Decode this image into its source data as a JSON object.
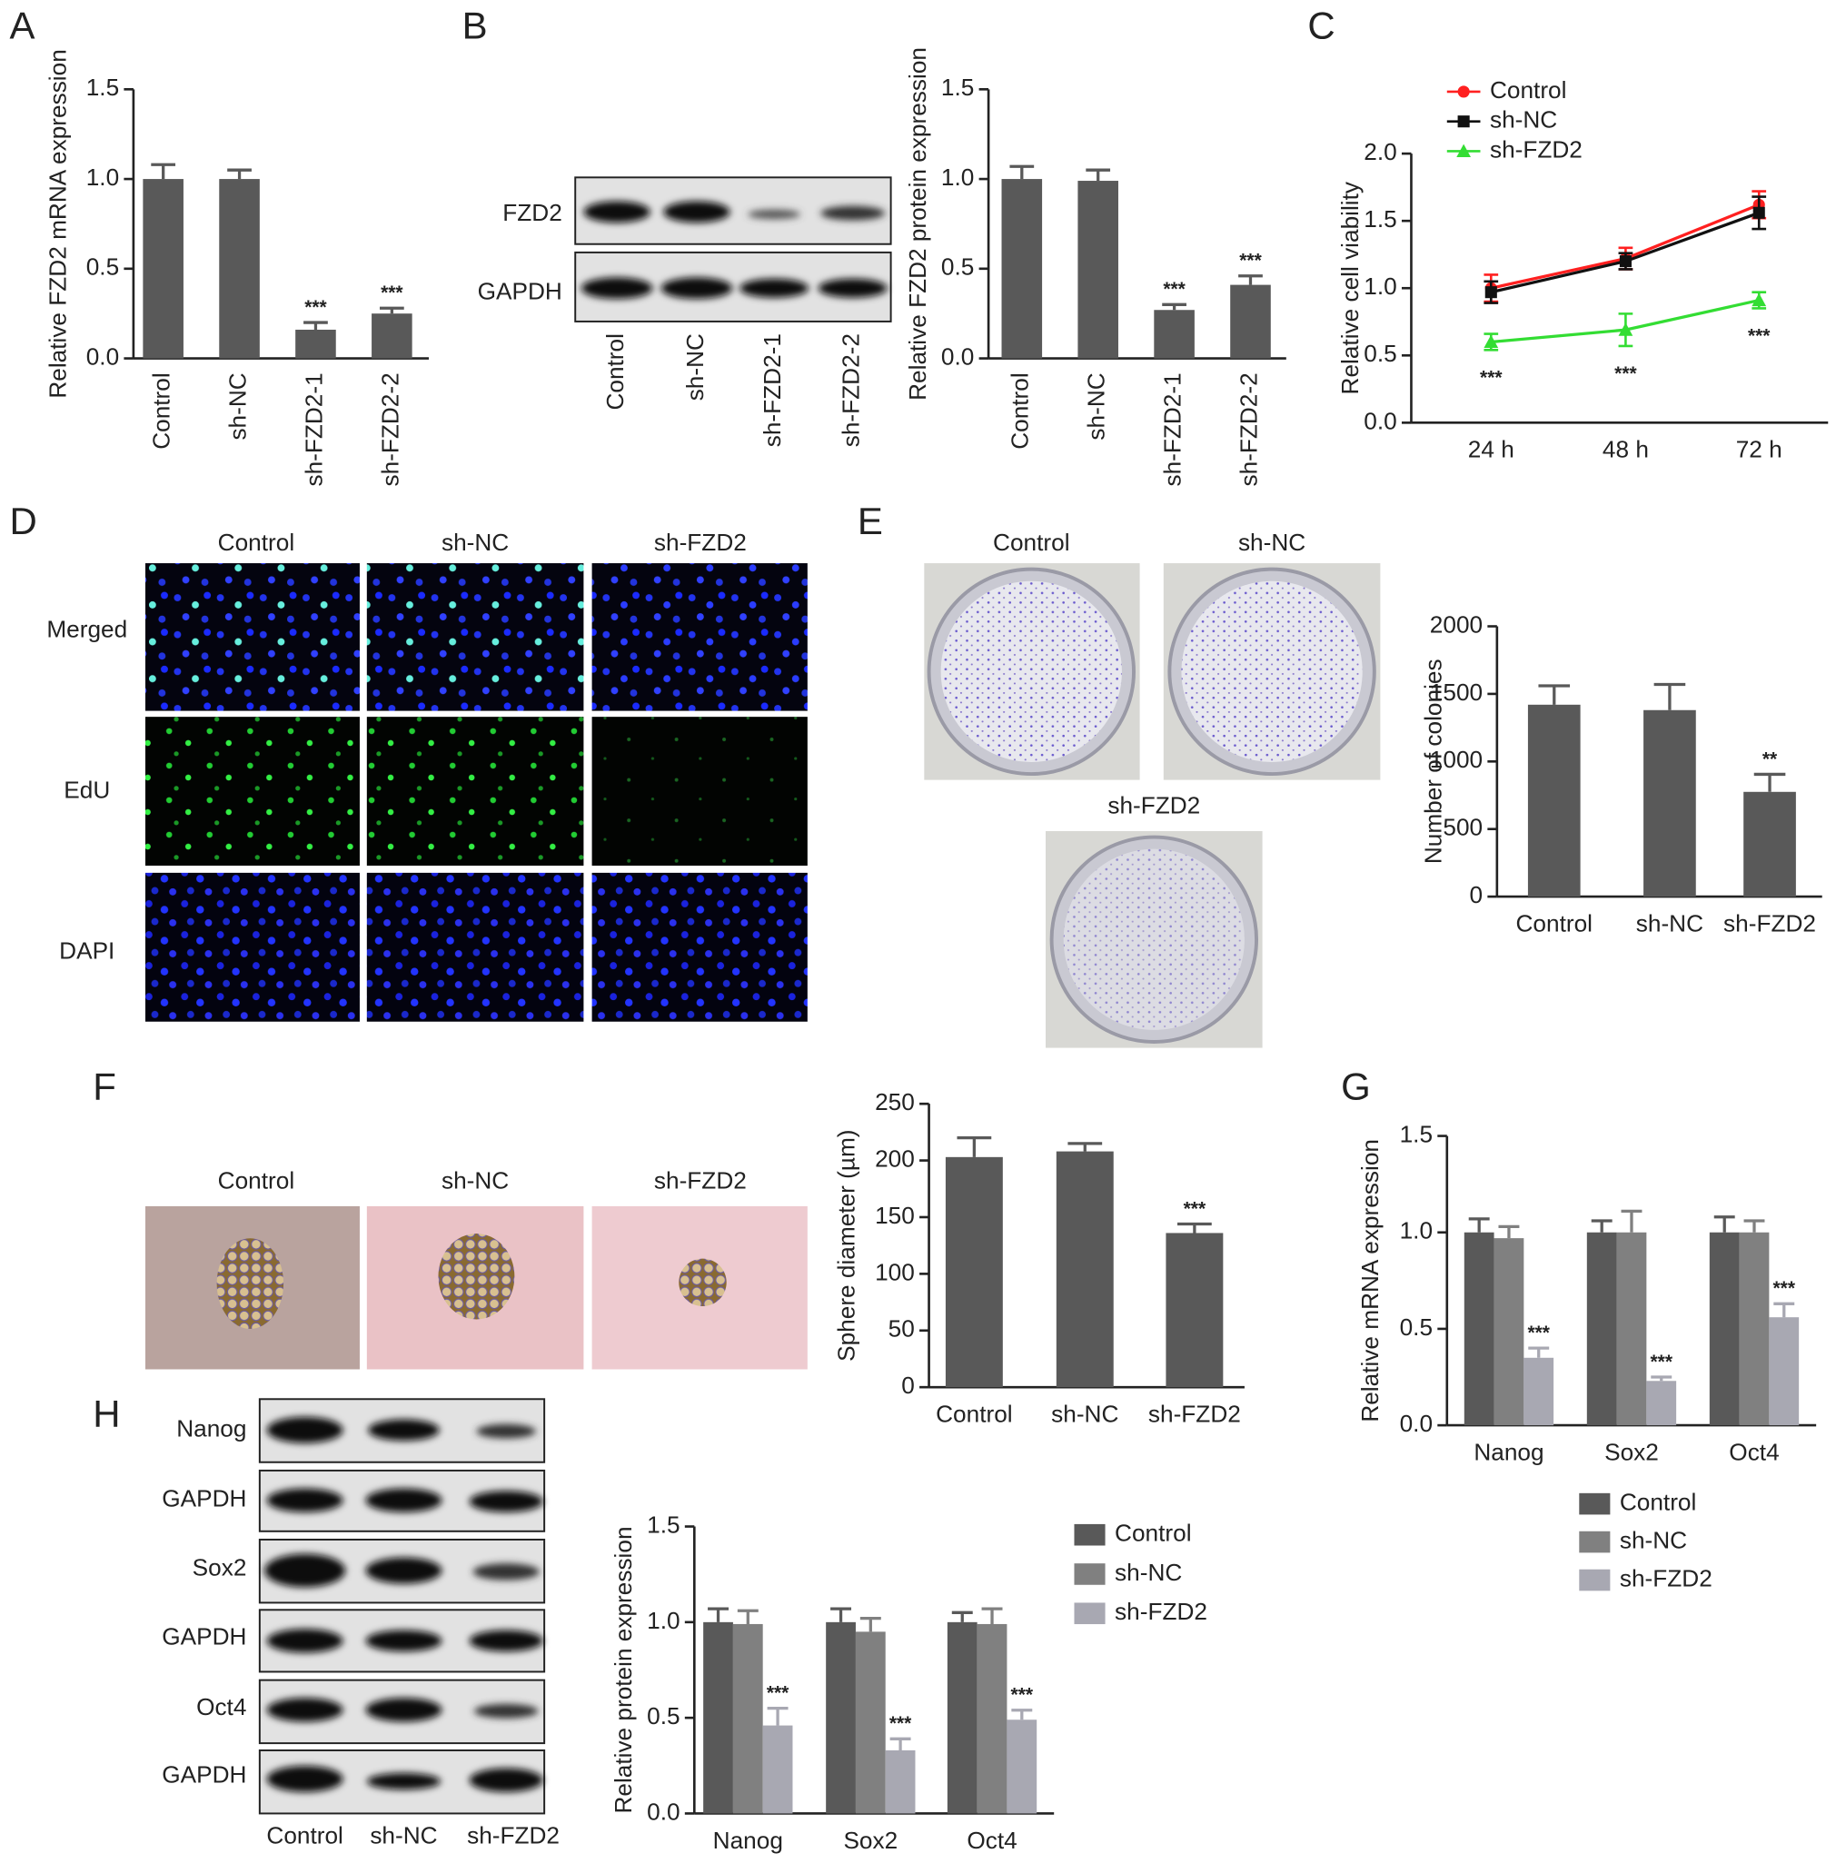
{
  "panel_labels": [
    "A",
    "B",
    "C",
    "D",
    "E",
    "F",
    "G",
    "H"
  ],
  "blot_b": {
    "rows": [
      "FZD2",
      "GAPDH"
    ],
    "columns": [
      "Control",
      "sh-NC",
      "sh-FZD2-1",
      "sh-FZD2-2"
    ]
  },
  "images_d": {
    "columns": [
      "Control",
      "sh-NC",
      "sh-FZD2"
    ],
    "rows": [
      "Merged",
      "EdU",
      "DAPI"
    ]
  },
  "images_e": {
    "labels": [
      "Control",
      "sh-NC",
      "sh-FZD2"
    ]
  },
  "images_f": {
    "labels": [
      "Control",
      "sh-NC",
      "sh-FZD2"
    ]
  },
  "blot_h": {
    "rows": [
      "Nanog",
      "GAPDH",
      "Sox2",
      "GAPDH",
      "Oct4",
      "GAPDH"
    ],
    "columns": [
      "Control",
      "sh-NC",
      "sh-FZD2"
    ]
  },
  "chart_data": [
    {
      "type": "bar",
      "y_label": "Relative FZD2 mRNA expression",
      "categories": [
        "Control",
        "sh-NC",
        "sh-FZD2-1",
        "sh-FZD2-2"
      ],
      "values": [
        1.0,
        1.0,
        0.16,
        0.25
      ],
      "errors": [
        0.08,
        0.05,
        0.04,
        0.03
      ],
      "annotations": [
        null,
        null,
        "***",
        "***"
      ],
      "color": "#595959",
      "ylim": [
        0,
        1.5
      ],
      "yticks": [
        {
          "value": 0,
          "label": "0.0"
        },
        0.5,
        {
          "value": 1,
          "label": "1.0"
        },
        1.5
      ]
    },
    {
      "type": "bar",
      "y_label": "Relative FZD2 protein expression",
      "categories": [
        "Control",
        "sh-NC",
        "sh-FZD2-1",
        "sh-FZD2-2"
      ],
      "values": [
        1.0,
        0.99,
        0.27,
        0.41
      ],
      "errors": [
        0.07,
        0.06,
        0.03,
        0.05
      ],
      "annotations": [
        null,
        null,
        "***",
        "***"
      ],
      "color": "#595959",
      "ylim": [
        0,
        1.5
      ],
      "yticks": [
        {
          "value": 0,
          "label": "0.0"
        },
        0.5,
        {
          "value": 1,
          "label": "1.0"
        },
        1.5
      ]
    },
    {
      "type": "line",
      "y_label": "Relative cell viability",
      "categories": [
        "24 h",
        "48 h",
        "72 h"
      ],
      "series": [
        {
          "name": "Control",
          "color": "#ff2020",
          "marker": "circle",
          "values": [
            1.0,
            1.22,
            1.62
          ],
          "errors": [
            0.1,
            0.08,
            0.1
          ]
        },
        {
          "name": "sh-NC",
          "color": "#111111",
          "marker": "square",
          "values": [
            0.97,
            1.2,
            1.56
          ],
          "errors": [
            0.08,
            0.06,
            0.12
          ]
        },
        {
          "name": "sh-FZD2",
          "color": "#33dd33",
          "marker": "triangle",
          "values": [
            0.6,
            0.69,
            0.91
          ],
          "errors": [
            0.06,
            0.12,
            0.06
          ],
          "annotations": [
            "***",
            "***",
            "***"
          ]
        }
      ],
      "legend": "top-left",
      "ylim": [
        0,
        2
      ],
      "yticks": [
        {
          "value": 0,
          "label": "0.0"
        },
        0.5,
        {
          "value": 1,
          "label": "1.0"
        },
        1.5,
        {
          "value": 2,
          "label": "2.0"
        }
      ]
    },
    {
      "type": "bar",
      "y_label": "Number of colonies",
      "categories": [
        "Control",
        "sh-NC",
        "sh-FZD2"
      ],
      "values": [
        1420,
        1380,
        775
      ],
      "errors": [
        140,
        190,
        130
      ],
      "annotations": [
        null,
        null,
        "**"
      ],
      "color": "#595959",
      "ylim": [
        0,
        2000
      ],
      "yticks": [
        0,
        500,
        1000,
        1500,
        2000
      ]
    },
    {
      "type": "bar",
      "y_label": "Sphere diameter (µm)",
      "categories": [
        "Control",
        "sh-NC",
        "sh-FZD2"
      ],
      "values": [
        203,
        208,
        136
      ],
      "errors": [
        17,
        7,
        8
      ],
      "annotations": [
        null,
        null,
        "***"
      ],
      "color": "#595959",
      "ylim": [
        0,
        250
      ],
      "yticks": [
        0,
        50,
        100,
        150,
        200,
        250
      ]
    },
    {
      "type": "grouped_bar",
      "y_label": "Relative mRNA expression",
      "categories": [
        "Nanog",
        "Sox2",
        "Oct4"
      ],
      "series": [
        {
          "name": "Control",
          "color": "#595959",
          "values": [
            1.0,
            1.0,
            1.0
          ],
          "errors": [
            0.07,
            0.06,
            0.08
          ]
        },
        {
          "name": "sh-NC",
          "color": "#808080",
          "values": [
            0.97,
            1.0,
            1.0
          ],
          "errors": [
            0.06,
            0.11,
            0.06
          ]
        },
        {
          "name": "sh-FZD2",
          "color": "#a8a8b2",
          "values": [
            0.35,
            0.23,
            0.56
          ],
          "errors": [
            0.05,
            0.02,
            0.07
          ],
          "annotations": [
            "***",
            "***",
            "***"
          ]
        }
      ],
      "legend": "bottom",
      "ylim": [
        0,
        1.5
      ],
      "yticks": [
        {
          "value": 0,
          "label": "0.0"
        },
        0.5,
        {
          "value": 1,
          "label": "1.0"
        },
        1.5
      ]
    },
    {
      "type": "grouped_bar",
      "y_label": "Relative protein expression",
      "categories": [
        "Nanog",
        "Sox2",
        "Oct4"
      ],
      "series": [
        {
          "name": "Control",
          "color": "#595959",
          "values": [
            1.0,
            1.0,
            1.0
          ],
          "errors": [
            0.07,
            0.07,
            0.05
          ]
        },
        {
          "name": "sh-NC",
          "color": "#808080",
          "values": [
            0.99,
            0.95,
            0.99
          ],
          "errors": [
            0.07,
            0.07,
            0.08
          ]
        },
        {
          "name": "sh-FZD2",
          "color": "#a8a8b2",
          "values": [
            0.46,
            0.33,
            0.49
          ],
          "errors": [
            0.09,
            0.06,
            0.05
          ],
          "annotations": [
            "***",
            "***",
            "***"
          ]
        }
      ],
      "legend": "right",
      "ylim": [
        0,
        1.5
      ],
      "yticks": [
        {
          "value": 0,
          "label": "0.0"
        },
        0.5,
        {
          "value": 1,
          "label": "1.0"
        },
        1.5
      ]
    }
  ]
}
